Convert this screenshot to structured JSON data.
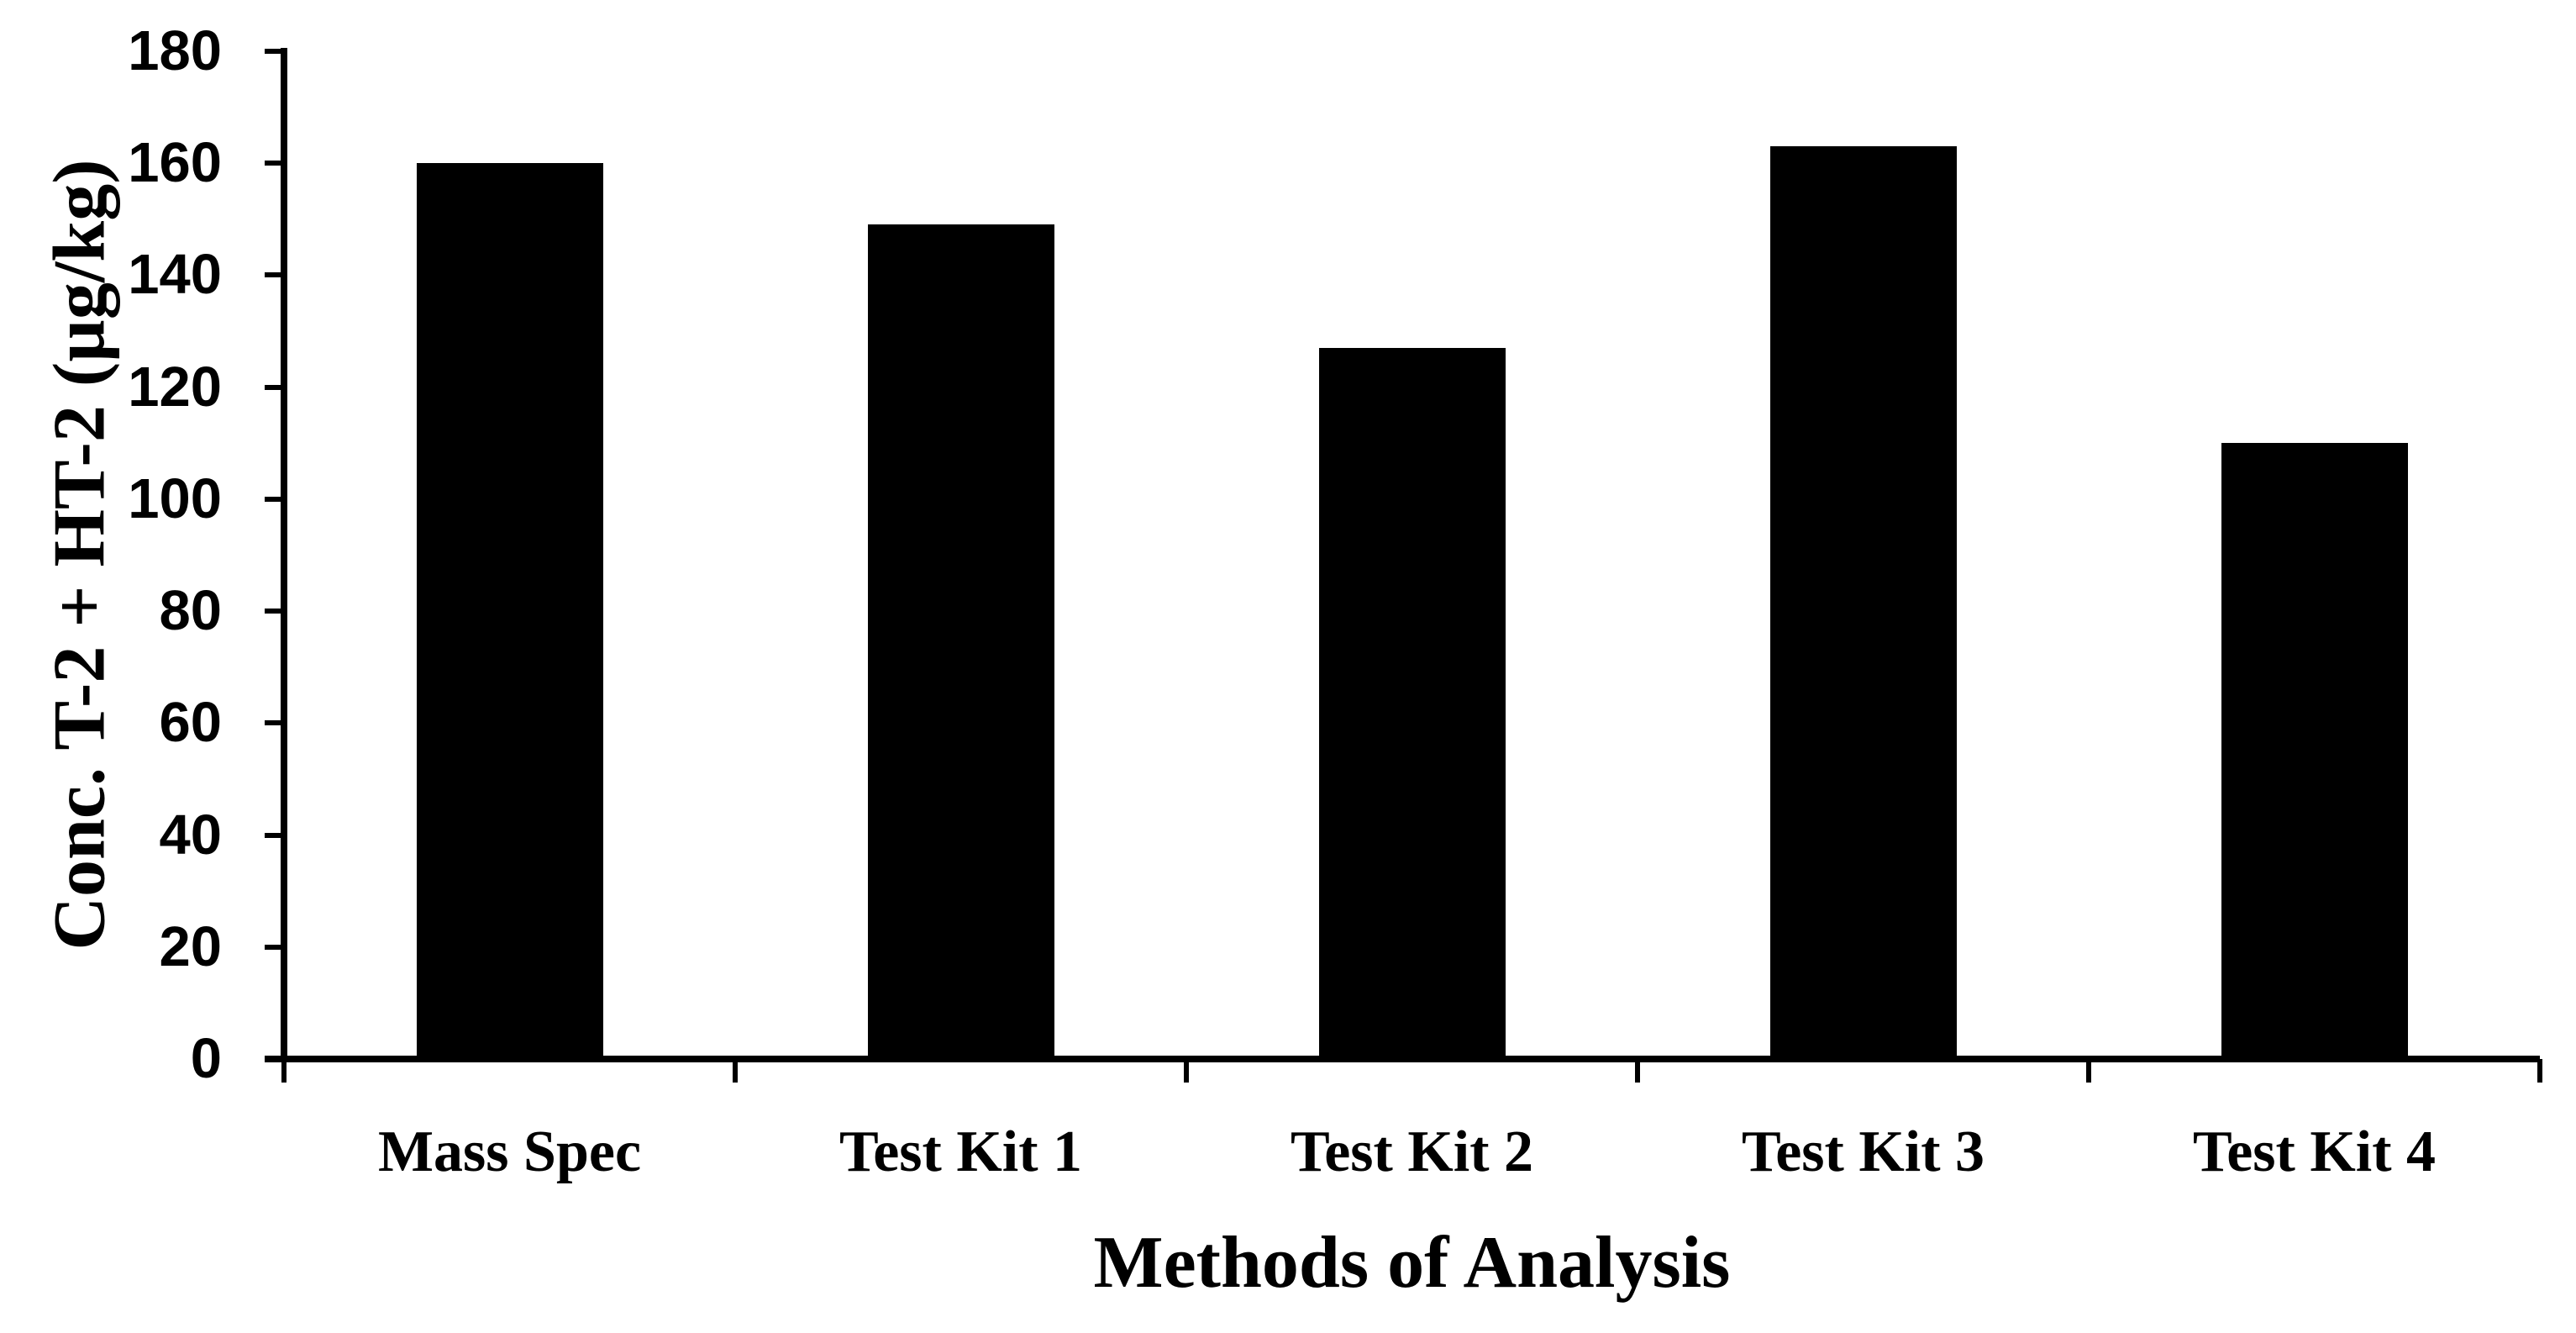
{
  "chart_data": {
    "type": "bar",
    "title": "",
    "xlabel": "Methods of Analysis",
    "ylabel": "Conc. T-2 + HT-2 (µg/kg)",
    "categories": [
      "Mass Spec",
      "Test Kit 1",
      "Test Kit 2",
      "Test Kit 3",
      "Test Kit 4"
    ],
    "values": [
      160,
      149,
      127,
      163,
      110
    ],
    "ylim": [
      0,
      180
    ],
    "ytick_step": 20,
    "yticks": [
      0,
      20,
      40,
      60,
      80,
      100,
      120,
      140,
      160,
      180
    ],
    "grid": false,
    "legend": null,
    "colors": {
      "bar": "#000000",
      "axis": "#000000",
      "text": "#000000",
      "background": "#ffffff"
    }
  }
}
